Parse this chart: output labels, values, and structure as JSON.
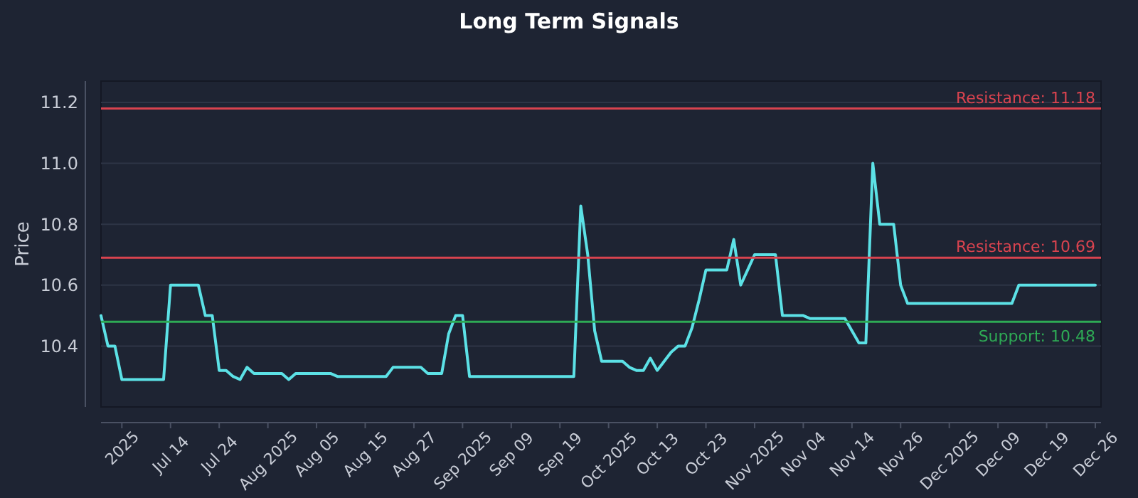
{
  "chart_data": {
    "type": "line",
    "title": "Long Term Signals",
    "ylabel": "Price",
    "categories": [
      null,
      null,
      null,
      "2025",
      null,
      null,
      null,
      null,
      null,
      null,
      "Jul 14",
      null,
      null,
      null,
      null,
      null,
      null,
      "Jul 24",
      null,
      null,
      null,
      null,
      null,
      null,
      "Aug 2025",
      null,
      null,
      null,
      null,
      null,
      null,
      "Aug 05",
      null,
      null,
      null,
      null,
      null,
      null,
      "Aug 15",
      null,
      null,
      null,
      null,
      null,
      null,
      "Aug 27",
      null,
      null,
      null,
      null,
      null,
      null,
      "Sep 2025",
      null,
      null,
      null,
      null,
      null,
      null,
      "Sep 09",
      null,
      null,
      null,
      null,
      null,
      null,
      "Sep 19",
      null,
      null,
      null,
      null,
      null,
      null,
      "Oct 2025",
      null,
      null,
      null,
      null,
      null,
      null,
      "Oct 13",
      null,
      null,
      null,
      null,
      null,
      null,
      "Oct 23",
      null,
      null,
      null,
      null,
      null,
      null,
      "Nov 2025",
      null,
      null,
      null,
      null,
      null,
      null,
      "Nov 04",
      null,
      null,
      null,
      null,
      null,
      null,
      "Nov 14",
      null,
      null,
      null,
      null,
      null,
      null,
      "Nov 26",
      null,
      null,
      null,
      null,
      null,
      null,
      "Dec 2025",
      null,
      null,
      null,
      null,
      null,
      null,
      "Dec 09",
      null,
      null,
      null,
      null,
      null,
      null,
      "Dec 19",
      null,
      null,
      null,
      null,
      null,
      null,
      "Dec 26"
    ],
    "series": [
      {
        "color": "#5ce1e6",
        "values": [
          10.5,
          10.4,
          10.4,
          10.29,
          10.29,
          10.29,
          10.29,
          10.29,
          10.29,
          10.29,
          10.6,
          10.6,
          10.6,
          10.6,
          10.6,
          10.5,
          10.5,
          10.32,
          10.32,
          10.3,
          10.29,
          10.33,
          10.31,
          10.31,
          10.31,
          10.31,
          10.31,
          10.29,
          10.31,
          10.31,
          10.31,
          10.31,
          10.31,
          10.31,
          10.3,
          10.3,
          10.3,
          10.3,
          10.3,
          10.3,
          10.3,
          10.3,
          10.33,
          10.33,
          10.33,
          10.33,
          10.33,
          10.31,
          10.31,
          10.31,
          10.44,
          10.5,
          10.5,
          10.3,
          10.3,
          10.3,
          10.3,
          10.3,
          10.3,
          10.3,
          10.3,
          10.3,
          10.3,
          10.3,
          10.3,
          10.3,
          10.3,
          10.3,
          10.3,
          10.86,
          10.7,
          10.45,
          10.35,
          10.35,
          10.35,
          10.35,
          10.33,
          10.32,
          10.32,
          10.36,
          10.32,
          10.35,
          10.38,
          10.4,
          10.4,
          10.46,
          10.55,
          10.65,
          10.65,
          10.65,
          10.65,
          10.75,
          10.6,
          10.65,
          10.7,
          10.7,
          10.7,
          10.7,
          10.5,
          10.5,
          10.5,
          10.5,
          10.49,
          10.49,
          10.49,
          10.49,
          10.49,
          10.49,
          10.45,
          10.41,
          10.41,
          11.0,
          10.8,
          10.8,
          10.8,
          10.6,
          10.54,
          10.54,
          10.54,
          10.54,
          10.54,
          10.54,
          10.54,
          10.54,
          10.54,
          10.54,
          10.54,
          10.54,
          10.54,
          10.54,
          10.54,
          10.54,
          10.6,
          10.6,
          10.6,
          10.6,
          10.6,
          10.6,
          10.6,
          10.6,
          10.6,
          10.6,
          10.6,
          10.6
        ]
      }
    ],
    "ylim": [
      10.2,
      11.27
    ],
    "yticks": [
      10.4,
      10.6,
      10.8,
      {
        "value": 11.0,
        "label": "11.0"
      },
      11.2
    ],
    "ref_lines": [
      {
        "axis": "y",
        "value": 11.18,
        "label": "Resistance: 11.18",
        "color": "#d9434f"
      },
      {
        "axis": "y",
        "value": 10.69,
        "label": "Resistance: 10.69",
        "color": "#d9434f"
      },
      {
        "axis": "y",
        "value": 10.48,
        "label": "Support: 10.48",
        "color": "#2eaa55"
      }
    ],
    "grid": "y",
    "line_style": "solid",
    "marker": "none"
  }
}
